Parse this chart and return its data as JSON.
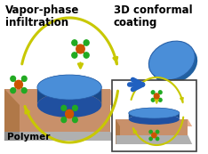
{
  "bg_color": "#ffffff",
  "title_left": "Vapor-phase\ninfiltration",
  "title_right": "3D conformal\ncoating",
  "label_polymer": "Polymer",
  "arrow_color": "#C8C800",
  "arrow_blue_color": "#2060C0",
  "molecule_orange": "#CC5500",
  "molecule_green": "#22AA22",
  "disc_top_color": "#4A8ED8",
  "disc_side_color": "#1A4A8A",
  "disc_bottom_color": "#2050A0",
  "slab_top_color": "#E8B090",
  "slab_front_color": "#C8906A",
  "slab_side_color": "#B07848",
  "slab_gray_front": "#A0A0A0",
  "slab_gray_top": "#C0C0C0"
}
